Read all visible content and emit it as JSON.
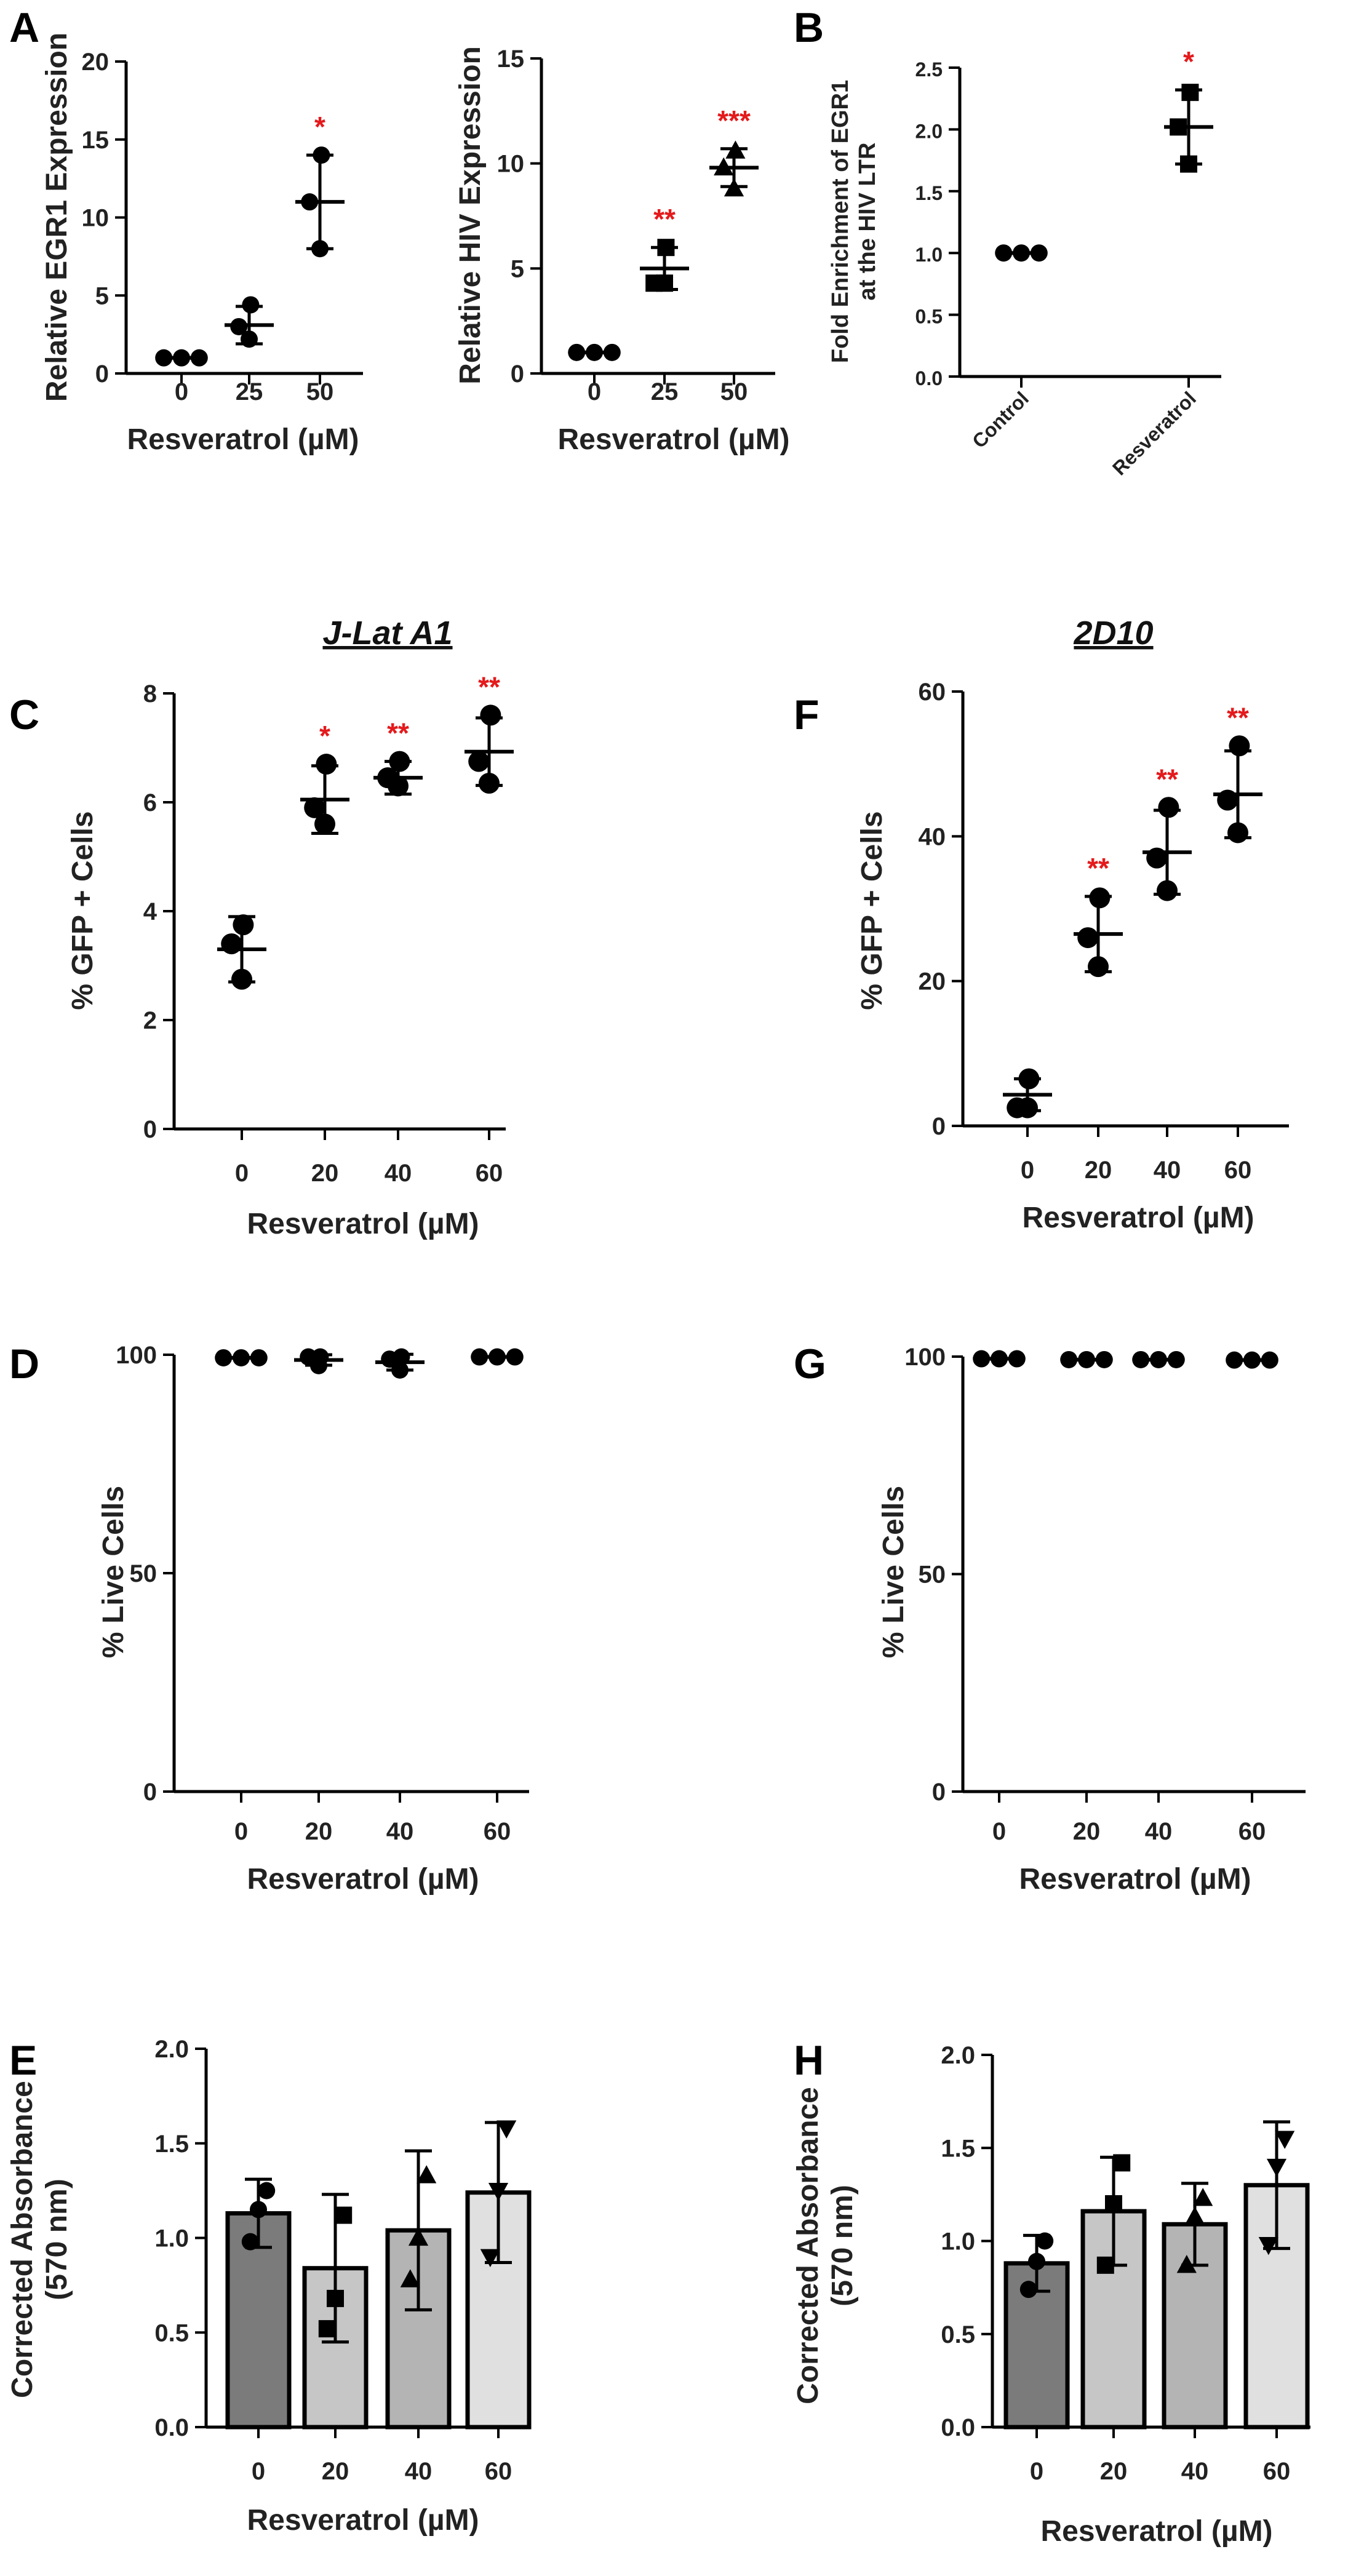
{
  "cell_lines": [
    "J-Lat A1",
    "2D10"
  ],
  "chart_data": [
    {
      "id": "A1",
      "panel": "A",
      "type": "scatter",
      "xlabel": "Resveratrol (µM)",
      "ylabel": "Relative EGR1 Expression",
      "categories": [
        "0",
        "25",
        "50"
      ],
      "ylim": [
        0,
        20
      ],
      "yticks": [
        0,
        5,
        10,
        15,
        20
      ],
      "points": [
        [
          1,
          1,
          1
        ],
        [
          2.2,
          3,
          4.4
        ],
        [
          8,
          11,
          14
        ]
      ],
      "markers": [
        "circle",
        "circle",
        "circle"
      ],
      "mean": [
        1,
        3.1,
        11
      ],
      "sd": [
        0,
        1.2,
        3
      ],
      "sig": [
        "",
        "",
        "*"
      ]
    },
    {
      "id": "A2",
      "panel": "",
      "type": "scatter",
      "xlabel": "Resveratrol (µM)",
      "ylabel": "Relative HIV Expression",
      "categories": [
        "0",
        "25",
        "50"
      ],
      "ylim": [
        0,
        15
      ],
      "yticks": [
        0,
        5,
        10,
        15
      ],
      "points": [
        [
          1,
          1,
          1
        ],
        [
          4.3,
          4.3,
          6
        ],
        [
          8.8,
          9.8,
          10.6
        ]
      ],
      "markers": [
        "circle",
        "square",
        "triangle"
      ],
      "mean": [
        1,
        5,
        9.8
      ],
      "sd": [
        0,
        1,
        0.9
      ],
      "sig": [
        "",
        "**",
        "***"
      ]
    },
    {
      "id": "B",
      "panel": "B",
      "type": "scatter",
      "xlabel": "",
      "ylabel": "Fold Enrichment of EGR1 at the HIV LTR",
      "ylabel_lines": [
        "Fold Enrichment of EGR1",
        "at the HIV LTR"
      ],
      "categories": [
        "Control",
        "Resveratrol"
      ],
      "ylim": [
        0,
        2.5
      ],
      "yticks": [
        0.0,
        0.5,
        1.0,
        1.5,
        2.0,
        2.5
      ],
      "ytick_labels": [
        "0.0",
        "0.5",
        "1.0",
        "1.5",
        "2.0",
        "2.5"
      ],
      "points": [
        [
          1,
          1,
          1
        ],
        [
          1.72,
          2.02,
          2.3
        ]
      ],
      "markers": [
        "circle",
        "square"
      ],
      "mean": [
        1,
        2.02
      ],
      "sd": [
        0,
        0.3
      ],
      "sig": [
        "",
        "*"
      ]
    },
    {
      "id": "C",
      "panel": "C",
      "type": "scatter",
      "xlabel": "Resveratrol (µM)",
      "ylabel": "% GFP + Cells",
      "categories": [
        "0",
        "20",
        "40",
        "60"
      ],
      "ylim": [
        0,
        8
      ],
      "yticks": [
        0,
        2,
        4,
        6,
        8
      ],
      "points": [
        [
          2.75,
          3.4,
          3.75
        ],
        [
          5.6,
          5.9,
          6.7
        ],
        [
          6.3,
          6.45,
          6.75
        ],
        [
          6.35,
          6.75,
          7.6
        ]
      ],
      "markers": [
        "circle",
        "circle",
        "circle",
        "circle"
      ],
      "mean": [
        3.3,
        6.05,
        6.45,
        6.93
      ],
      "sd": [
        0.6,
        0.62,
        0.3,
        0.62
      ],
      "sig": [
        "",
        "*",
        "**",
        "**"
      ]
    },
    {
      "id": "F",
      "panel": "F",
      "type": "scatter",
      "xlabel": "Resveratrol (µM)",
      "ylabel": "% GFP + Cells",
      "categories": [
        "0",
        "20",
        "40",
        "60"
      ],
      "ylim": [
        0,
        60
      ],
      "yticks": [
        0,
        20,
        40,
        60
      ],
      "points": [
        [
          2.5,
          2.5,
          6.5
        ],
        [
          22,
          26,
          31.5
        ],
        [
          32.5,
          37,
          44
        ],
        [
          40.5,
          45,
          52.5
        ]
      ],
      "markers": [
        "circle",
        "circle",
        "circle",
        "circle"
      ],
      "mean": [
        4.3,
        26.5,
        37.8,
        45.8
      ],
      "sd": [
        2.2,
        5.2,
        5.8,
        6
      ],
      "sig": [
        "",
        "**",
        "**",
        "**"
      ]
    },
    {
      "id": "D",
      "panel": "D",
      "type": "scatter",
      "xlabel": "Resveratrol (µM)",
      "ylabel": "% Live Cells",
      "categories": [
        "0",
        "20",
        "40",
        "60"
      ],
      "ylim": [
        0,
        100
      ],
      "yticks": [
        0,
        50,
        100
      ],
      "points": [
        [
          99.3,
          99.3,
          99.3
        ],
        [
          97.5,
          99.5,
          99.5
        ],
        [
          96.5,
          99,
          99.5
        ],
        [
          99.5,
          99.5,
          99.5
        ]
      ],
      "markers": [
        "circle",
        "circle",
        "circle",
        "circle"
      ],
      "mean": [
        99.3,
        98.8,
        98.3,
        99.5
      ],
      "sd": [
        0,
        1.2,
        1.8,
        0
      ],
      "sig": [
        "",
        "",
        "",
        ""
      ]
    },
    {
      "id": "G",
      "panel": "G",
      "type": "scatter",
      "xlabel": "Resveratrol (µM)",
      "ylabel": "% Live Cells",
      "categories": [
        "0",
        "20",
        "40",
        "60"
      ],
      "ylim": [
        0,
        100
      ],
      "yticks": [
        0,
        50,
        100
      ],
      "points": [
        [
          99.5,
          99.5,
          99.5
        ],
        [
          99.3,
          99.3,
          99.3
        ],
        [
          99.3,
          99.3,
          99.3
        ],
        [
          99.2,
          99.2,
          99.2
        ]
      ],
      "markers": [
        "circle",
        "circle",
        "circle",
        "circle"
      ],
      "mean": [
        99.5,
        99.3,
        99.3,
        99.2
      ],
      "sd": [
        0,
        0,
        0,
        0
      ],
      "sig": [
        "",
        "",
        "",
        ""
      ]
    },
    {
      "id": "E",
      "panel": "E",
      "type": "bar",
      "xlabel": "Resveratrol (µM)",
      "ylabel": "Corrected Absorbance (570 nm)",
      "ylabel_lines": [
        "Corrected Absorbance",
        "(570 nm)"
      ],
      "categories": [
        "0",
        "20",
        "40",
        "60"
      ],
      "ylim": [
        0,
        2
      ],
      "yticks": [
        0,
        0.5,
        1,
        1.5,
        2
      ],
      "ytick_labels": [
        "0.0",
        "0.5",
        "1.0",
        "1.5",
        "2.0"
      ],
      "values": [
        1.13,
        0.84,
        1.04,
        1.24
      ],
      "sd": [
        0.18,
        0.39,
        0.42,
        0.37
      ],
      "points": [
        [
          0.98,
          1.15,
          1.25
        ],
        [
          0.52,
          0.68,
          1.12
        ],
        [
          0.78,
          1.0,
          1.33
        ],
        [
          0.9,
          1.25,
          1.58
        ]
      ],
      "markers": [
        "circle",
        "square",
        "triangle",
        "inv-triangle"
      ],
      "bar_colors": [
        "#7b7b7b",
        "#c6c6c6",
        "#b4b4b4",
        "#e0e0e0"
      ]
    },
    {
      "id": "H",
      "panel": "H",
      "type": "bar",
      "xlabel": "Resveratrol (µM)",
      "ylabel": "Corrected Absorbance (570 nm)",
      "ylabel_lines": [
        "Corrected Absorbance",
        "(570 nm)"
      ],
      "categories": [
        "0",
        "20",
        "40",
        "60"
      ],
      "ylim": [
        0,
        2
      ],
      "yticks": [
        0,
        0.5,
        1,
        1.5,
        2
      ],
      "ytick_labels": [
        "0.0",
        "0.5",
        "1.0",
        "1.5",
        "2.0"
      ],
      "values": [
        0.88,
        1.16,
        1.09,
        1.3
      ],
      "sd": [
        0.15,
        0.29,
        0.22,
        0.34
      ],
      "points": [
        [
          0.74,
          0.89,
          1.0
        ],
        [
          0.87,
          1.2,
          1.42
        ],
        [
          0.87,
          1.13,
          1.23
        ],
        [
          0.98,
          1.4,
          1.55
        ]
      ],
      "markers": [
        "circle",
        "square",
        "triangle",
        "inv-triangle"
      ],
      "bar_colors": [
        "#7b7b7b",
        "#c6c6c6",
        "#b4b4b4",
        "#e0e0e0"
      ]
    }
  ]
}
